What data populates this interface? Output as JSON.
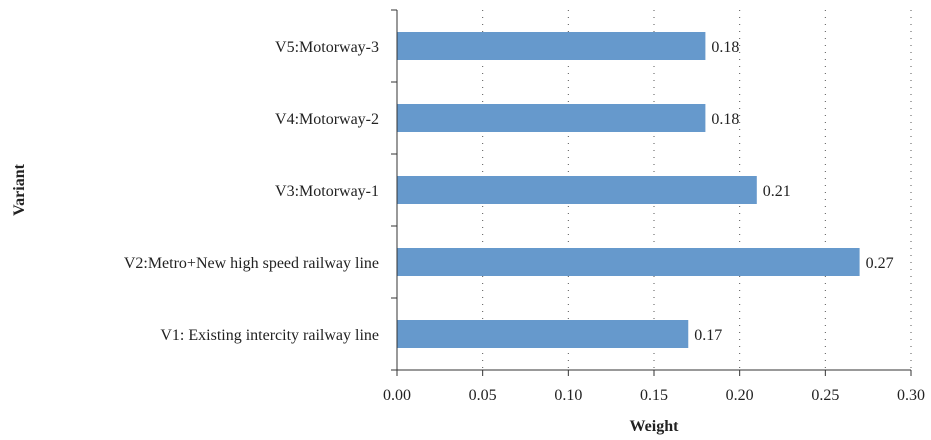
{
  "chart_data": {
    "type": "bar",
    "orientation": "horizontal",
    "categories": [
      "V1: Existing intercity railway line",
      "V2:Metro+New high speed railway line",
      "V3:Motorway-1",
      "V4:Motorway-2",
      "V5:Motorway-3"
    ],
    "values": [
      0.17,
      0.27,
      0.21,
      0.18,
      0.18
    ],
    "value_labels": [
      "0.17",
      "0.27",
      "0.21",
      "0.18",
      "0.18"
    ],
    "xlabel": "Weight",
    "ylabel": "Variant",
    "xlim": [
      0,
      0.3
    ],
    "xticks": [
      "0.00",
      "0.05",
      "0.10",
      "0.15",
      "0.20",
      "0.25",
      "0.30"
    ],
    "grid": "vertical dotted",
    "bar_color": "#6699cc"
  }
}
